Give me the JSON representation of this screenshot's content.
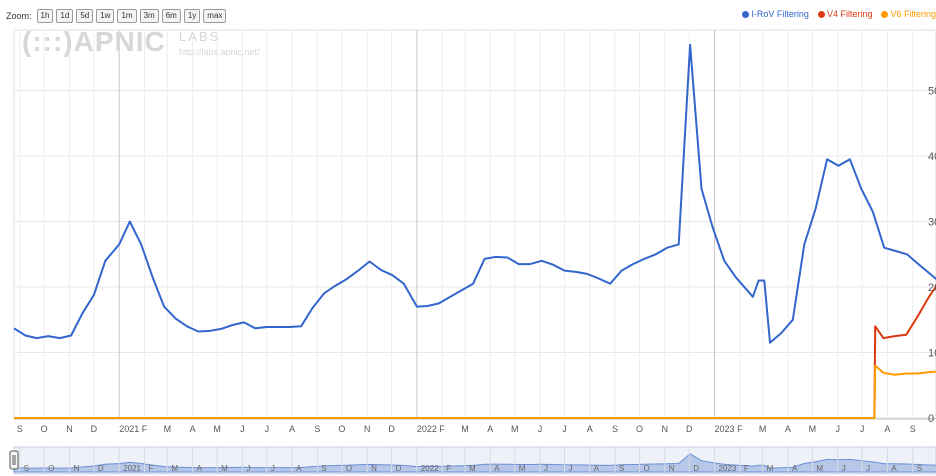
{
  "zoom": {
    "label": "Zoom:",
    "buttons": [
      "1h",
      "1d",
      "5d",
      "1w",
      "1m",
      "3m",
      "6m",
      "1y",
      "max"
    ]
  },
  "watermark": {
    "logo": "(:::)APNIC",
    "labs": "LABS",
    "url": "http://labs.apnic.net/"
  },
  "chart_data": {
    "type": "line",
    "legend_position": "top-right",
    "grid": true,
    "x_range": [
      "2020-08-25",
      "2023-10-02"
    ],
    "y_visible_labels": [
      "50",
      "40",
      "30",
      "20",
      "10",
      "0"
    ],
    "series": [
      {
        "name": "I-RoV Filtering",
        "color": "#3366cc",
        "points": [
          [
            "2020-08-25",
            13.7
          ],
          [
            "2020-09-08",
            12.6
          ],
          [
            "2020-09-22",
            12.2
          ],
          [
            "2020-10-06",
            12.5
          ],
          [
            "2020-10-20",
            12.2
          ],
          [
            "2020-11-03",
            12.6
          ],
          [
            "2020-11-17",
            16.0
          ],
          [
            "2020-12-01",
            18.8
          ],
          [
            "2020-12-15",
            24.0
          ],
          [
            "2021-01-01",
            26.5
          ],
          [
            "2021-01-14",
            30.0
          ],
          [
            "2021-01-28",
            26.5
          ],
          [
            "2021-02-11",
            21.5
          ],
          [
            "2021-02-25",
            17.0
          ],
          [
            "2021-03-11",
            15.2
          ],
          [
            "2021-03-25",
            14.0
          ],
          [
            "2021-04-08",
            13.2
          ],
          [
            "2021-04-22",
            13.3
          ],
          [
            "2021-05-06",
            13.6
          ],
          [
            "2021-05-20",
            14.2
          ],
          [
            "2021-06-03",
            14.6
          ],
          [
            "2021-06-17",
            13.7
          ],
          [
            "2021-07-01",
            13.9
          ],
          [
            "2021-07-15",
            13.9
          ],
          [
            "2021-07-29",
            13.9
          ],
          [
            "2021-08-12",
            14.0
          ],
          [
            "2021-08-26",
            16.8
          ],
          [
            "2021-09-09",
            19.0
          ],
          [
            "2021-09-23",
            20.2
          ],
          [
            "2021-10-07",
            21.2
          ],
          [
            "2021-10-21",
            22.5
          ],
          [
            "2021-11-04",
            23.9
          ],
          [
            "2021-11-18",
            22.6
          ],
          [
            "2021-12-02",
            21.8
          ],
          [
            "2021-12-16",
            20.5
          ],
          [
            "2022-01-01",
            17.0
          ],
          [
            "2022-01-14",
            17.1
          ],
          [
            "2022-01-28",
            17.5
          ],
          [
            "2022-02-11",
            18.5
          ],
          [
            "2022-02-25",
            19.5
          ],
          [
            "2022-03-11",
            20.5
          ],
          [
            "2022-03-25",
            24.3
          ],
          [
            "2022-04-08",
            24.6
          ],
          [
            "2022-04-22",
            24.5
          ],
          [
            "2022-05-06",
            23.5
          ],
          [
            "2022-05-20",
            23.5
          ],
          [
            "2022-06-03",
            24.0
          ],
          [
            "2022-06-17",
            23.4
          ],
          [
            "2022-07-01",
            22.5
          ],
          [
            "2022-07-15",
            22.3
          ],
          [
            "2022-07-29",
            22.0
          ],
          [
            "2022-08-12",
            21.3
          ],
          [
            "2022-08-26",
            20.5
          ],
          [
            "2022-09-09",
            22.5
          ],
          [
            "2022-09-23",
            23.5
          ],
          [
            "2022-10-07",
            24.3
          ],
          [
            "2022-10-21",
            25.0
          ],
          [
            "2022-11-04",
            26.0
          ],
          [
            "2022-11-18",
            26.5
          ],
          [
            "2022-12-02",
            57.0
          ],
          [
            "2022-12-16",
            35.0
          ],
          [
            "2022-12-30",
            29.0
          ],
          [
            "2023-01-13",
            24.0
          ],
          [
            "2023-01-27",
            21.5
          ],
          [
            "2023-02-10",
            19.5
          ],
          [
            "2023-02-17",
            18.5
          ],
          [
            "2023-02-24",
            21.0
          ],
          [
            "2023-03-03",
            21.0
          ],
          [
            "2023-03-10",
            11.5
          ],
          [
            "2023-03-24",
            13.0
          ],
          [
            "2023-04-07",
            15.0
          ],
          [
            "2023-04-21",
            26.5
          ],
          [
            "2023-05-05",
            32.0
          ],
          [
            "2023-05-19",
            39.5
          ],
          [
            "2023-06-02",
            38.5
          ],
          [
            "2023-06-16",
            39.5
          ],
          [
            "2023-06-30",
            35.0
          ],
          [
            "2023-07-14",
            31.5
          ],
          [
            "2023-07-28",
            26.0
          ],
          [
            "2023-08-11",
            25.5
          ],
          [
            "2023-08-25",
            25.0
          ],
          [
            "2023-09-08",
            23.5
          ],
          [
            "2023-10-02",
            21.0
          ]
        ]
      },
      {
        "name": "V4 Filtering",
        "color": "#dc3912",
        "points": [
          [
            "2023-07-16",
            0
          ],
          [
            "2023-07-17",
            14.0
          ],
          [
            "2023-07-27",
            12.2
          ],
          [
            "2023-08-10",
            12.5
          ],
          [
            "2023-08-24",
            12.7
          ],
          [
            "2023-09-07",
            15.5
          ],
          [
            "2023-09-21",
            18.5
          ],
          [
            "2023-10-02",
            20.5
          ]
        ]
      },
      {
        "name": "V6 Filtering",
        "color": "#ff9900",
        "points": [
          [
            "2020-08-25",
            0
          ],
          [
            "2023-07-16",
            0
          ],
          [
            "2023-07-17",
            8.0
          ],
          [
            "2023-07-27",
            6.9
          ],
          [
            "2023-08-10",
            6.6
          ],
          [
            "2023-08-24",
            6.8
          ],
          [
            "2023-09-07",
            6.8
          ],
          [
            "2023-09-21",
            7.0
          ],
          [
            "2023-10-02",
            7.1
          ]
        ]
      }
    ],
    "x_ticks": [
      {
        "label": "S",
        "date": "2020-09-01"
      },
      {
        "label": "O",
        "date": "2020-10-01"
      },
      {
        "label": "N",
        "date": "2020-11-01"
      },
      {
        "label": "D",
        "date": "2020-12-01"
      },
      {
        "label": "2021",
        "date": "2021-01-01",
        "year": true
      },
      {
        "label": "F",
        "date": "2021-02-01"
      },
      {
        "label": "M",
        "date": "2021-03-01"
      },
      {
        "label": "A",
        "date": "2021-04-01"
      },
      {
        "label": "M",
        "date": "2021-05-01"
      },
      {
        "label": "J",
        "date": "2021-06-01"
      },
      {
        "label": "J",
        "date": "2021-07-01"
      },
      {
        "label": "A",
        "date": "2021-08-01"
      },
      {
        "label": "S",
        "date": "2021-09-01"
      },
      {
        "label": "O",
        "date": "2021-10-01"
      },
      {
        "label": "N",
        "date": "2021-11-01"
      },
      {
        "label": "D",
        "date": "2021-12-01"
      },
      {
        "label": "2022",
        "date": "2022-01-01",
        "year": true
      },
      {
        "label": "F",
        "date": "2022-02-01"
      },
      {
        "label": "M",
        "date": "2022-03-01"
      },
      {
        "label": "A",
        "date": "2022-04-01"
      },
      {
        "label": "M",
        "date": "2022-05-01"
      },
      {
        "label": "J",
        "date": "2022-06-01"
      },
      {
        "label": "J",
        "date": "2022-07-01"
      },
      {
        "label": "A",
        "date": "2022-08-01"
      },
      {
        "label": "S",
        "date": "2022-09-01"
      },
      {
        "label": "O",
        "date": "2022-10-01"
      },
      {
        "label": "N",
        "date": "2022-11-01"
      },
      {
        "label": "D",
        "date": "2022-12-01"
      },
      {
        "label": "2023",
        "date": "2023-01-01",
        "year": true
      },
      {
        "label": "F",
        "date": "2023-02-01"
      },
      {
        "label": "M",
        "date": "2023-03-01"
      },
      {
        "label": "A",
        "date": "2023-04-01"
      },
      {
        "label": "M",
        "date": "2023-05-01"
      },
      {
        "label": "J",
        "date": "2023-06-01"
      },
      {
        "label": "J",
        "date": "2023-07-01"
      },
      {
        "label": "A",
        "date": "2023-08-01"
      },
      {
        "label": "S",
        "date": "2023-09-01"
      }
    ],
    "navigator_ticks": [
      {
        "label": "S",
        "date": "2020-09-01"
      },
      {
        "label": "O",
        "date": "2020-10-01"
      },
      {
        "label": "N",
        "date": "2020-11-01"
      },
      {
        "label": "D",
        "date": "2020-12-01"
      },
      {
        "label": "2021",
        "date": "2021-01-01"
      },
      {
        "label": "F",
        "date": "2021-02-01"
      },
      {
        "label": "M",
        "date": "2021-03-01"
      },
      {
        "label": "A",
        "date": "2021-04-01"
      },
      {
        "label": "M",
        "date": "2021-05-01"
      },
      {
        "label": "J",
        "date": "2021-06-01"
      },
      {
        "label": "J",
        "date": "2021-07-01"
      },
      {
        "label": "A",
        "date": "2021-08-01"
      },
      {
        "label": "S",
        "date": "2021-09-01"
      },
      {
        "label": "O",
        "date": "2021-10-01"
      },
      {
        "label": "N",
        "date": "2021-11-01"
      },
      {
        "label": "D",
        "date": "2021-12-01"
      },
      {
        "label": "2022",
        "date": "2022-01-01"
      },
      {
        "label": "F",
        "date": "2022-02-01"
      },
      {
        "label": "M",
        "date": "2022-03-01"
      },
      {
        "label": "A",
        "date": "2022-04-01"
      },
      {
        "label": "M",
        "date": "2022-05-01"
      },
      {
        "label": "J",
        "date": "2022-06-01"
      },
      {
        "label": "J",
        "date": "2022-07-01"
      },
      {
        "label": "A",
        "date": "2022-08-01"
      },
      {
        "label": "S",
        "date": "2022-09-01"
      },
      {
        "label": "O",
        "date": "2022-10-01"
      },
      {
        "label": "N",
        "date": "2022-11-01"
      },
      {
        "label": "D",
        "date": "2022-12-01"
      },
      {
        "label": "2023",
        "date": "2023-01-01"
      },
      {
        "label": "F",
        "date": "2023-02-01"
      },
      {
        "label": "M",
        "date": "2023-03-01"
      },
      {
        "label": "A",
        "date": "2023-04-01"
      },
      {
        "label": "M",
        "date": "2023-05-01"
      },
      {
        "label": "J",
        "date": "2023-06-01"
      },
      {
        "label": "J",
        "date": "2023-07-01"
      },
      {
        "label": "A",
        "date": "2023-08-01"
      },
      {
        "label": "S",
        "date": "2023-09-01"
      }
    ]
  }
}
